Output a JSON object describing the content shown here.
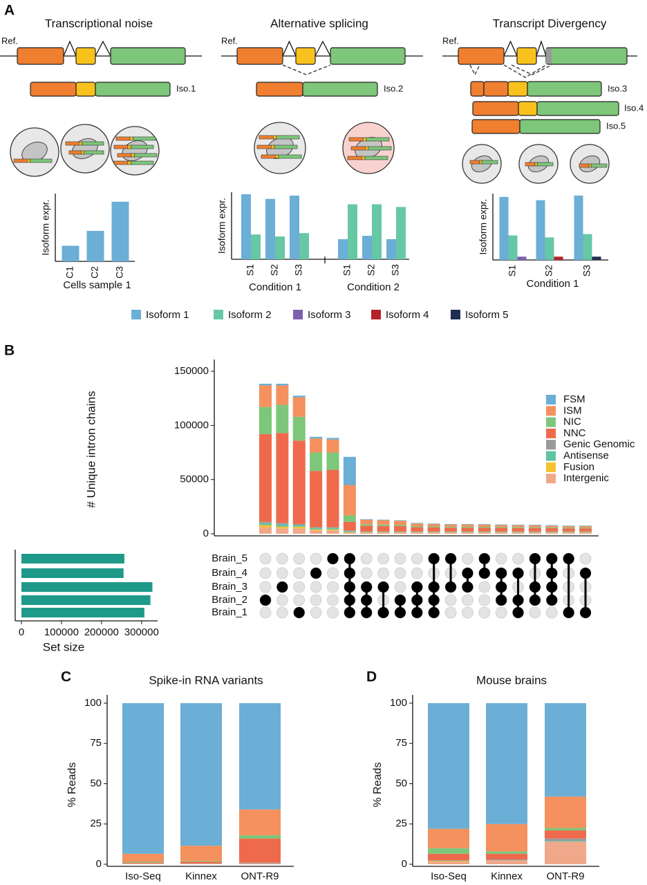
{
  "panel_a": {
    "label": "A",
    "ref_label": "Ref.",
    "columns": [
      {
        "title": "Transcriptional noise",
        "isoforms": [
          "Iso.1"
        ]
      },
      {
        "title": "Alternative splicing",
        "isoforms": [
          "Iso.2"
        ]
      },
      {
        "title": "Transcript Divergency",
        "isoforms": [
          "Iso.3",
          "Iso.4",
          "Iso.5"
        ]
      }
    ]
  },
  "chart_data": [
    {
      "type": "bar",
      "ylabel": "Isoform expr.",
      "xlabel": "Cells sample 1",
      "categories": [
        "C1",
        "C2",
        "C3"
      ],
      "ylim": [
        0,
        100
      ],
      "series": [
        {
          "name": "Isoform 1",
          "color": "#6baed6",
          "values": [
            23,
            45,
            88
          ]
        }
      ]
    },
    {
      "type": "bar",
      "ylabel": "Isoform expr.",
      "group_labels": [
        "Condition 1",
        "Condition 2"
      ],
      "categories": [
        "S1",
        "S2",
        "S3",
        "S1",
        "S2",
        "S3"
      ],
      "ylim": [
        0,
        100
      ],
      "series": [
        {
          "name": "Isoform 1",
          "color": "#6baed6",
          "values": [
            97,
            90,
            95,
            30,
            35,
            30
          ]
        },
        {
          "name": "Isoform 2",
          "color": "#66c8a4",
          "values": [
            37,
            34,
            39,
            82,
            82,
            78
          ]
        }
      ]
    },
    {
      "type": "bar",
      "ylabel": "Isoform expr.",
      "xlabel": "Condition 1",
      "categories": [
        "S1",
        "S2",
        "S3"
      ],
      "ylim": [
        0,
        100
      ],
      "legend": "bottom",
      "series": [
        {
          "name": "Isoform 1",
          "color": "#6baed6",
          "values": [
            95,
            90,
            97
          ]
        },
        {
          "name": "Isoform 2",
          "color": "#66c8a4",
          "values": [
            37,
            34,
            39
          ]
        },
        {
          "name": "Isoform 3",
          "color": "#7f5fb0",
          "values": [
            5,
            null,
            null
          ]
        },
        {
          "name": "Isoform 4",
          "color": "#b5202a",
          "values": [
            null,
            5,
            null
          ]
        },
        {
          "name": "Isoform 5",
          "color": "#1f2d50",
          "values": [
            null,
            null,
            5
          ]
        }
      ]
    },
    {
      "type": "upset",
      "label": "B",
      "ylabel": "# Unique intron chains",
      "ylim": [
        0,
        150000
      ],
      "yticks": [
        0,
        50000,
        100000,
        150000
      ],
      "legend": "top-right",
      "series": [
        {
          "name": "FSM",
          "color": "#6baed6",
          "values": [
            1500,
            1500,
            1500,
            1500,
            1500,
            26000,
            500,
            500,
            500,
            500,
            500,
            500,
            500,
            500,
            500,
            500,
            500,
            500,
            500,
            500
          ]
        },
        {
          "name": "ISM",
          "color": "#f4915e",
          "values": [
            20000,
            18000,
            18000,
            13000,
            12000,
            28000,
            4200,
            4000,
            3800,
            2500,
            2300,
            2000,
            2000,
            1900,
            1800,
            1700,
            1700,
            1500,
            1300,
            1300
          ]
        },
        {
          "name": "NIC",
          "color": "#7dc67a",
          "values": [
            25000,
            26000,
            22000,
            17000,
            16000,
            6000,
            1400,
            1300,
            1200,
            1000,
            900,
            900,
            900,
            900,
            900,
            900,
            800,
            800,
            700,
            700
          ]
        },
        {
          "name": "NNC",
          "color": "#ef6a4c",
          "values": [
            81000,
            83000,
            77000,
            52000,
            53000,
            8000,
            5400,
            5200,
            5000,
            4000,
            3800,
            3600,
            3600,
            3500,
            3400,
            3300,
            3300,
            3200,
            3000,
            3000
          ]
        },
        {
          "name": "Genic Genomic",
          "color": "#999999",
          "values": [
            1000,
            1500,
            1000,
            500,
            500,
            500,
            200,
            200,
            200,
            200,
            200,
            200,
            200,
            200,
            200,
            200,
            200,
            200,
            200,
            200
          ]
        },
        {
          "name": "Antisense",
          "color": "#5fc4a2",
          "values": [
            2000,
            2000,
            1500,
            1500,
            1500,
            1000,
            500,
            500,
            500,
            500,
            500,
            500,
            500,
            500,
            500,
            500,
            500,
            500,
            500,
            500
          ]
        },
        {
          "name": "Fusion",
          "color": "#f5c12e",
          "values": [
            2000,
            1500,
            1500,
            1000,
            1000,
            500,
            300,
            300,
            300,
            300,
            300,
            300,
            300,
            300,
            300,
            300,
            300,
            300,
            300,
            300
          ]
        },
        {
          "name": "Intergenic",
          "color": "#f0a88a",
          "values": [
            6000,
            5000,
            5000,
            3000,
            3000,
            1000,
            1000,
            1000,
            1000,
            1000,
            1000,
            1000,
            1000,
            1000,
            1000,
            1000,
            1000,
            1000,
            1000,
            1000
          ]
        }
      ],
      "sets": [
        "Brain_5",
        "Brain_4",
        "Brain_3",
        "Brain_2",
        "Brain_1"
      ],
      "intersections": [
        [
          3
        ],
        [
          2
        ],
        [
          4
        ],
        [
          1
        ],
        [
          0
        ],
        [
          0,
          1,
          2,
          3,
          4
        ],
        [
          2,
          3,
          4
        ],
        [
          2,
          4
        ],
        [
          3,
          4
        ],
        [
          2,
          3,
          4
        ],
        [
          0,
          2,
          3,
          4
        ],
        [
          0,
          2
        ],
        [
          1,
          2
        ],
        [
          0,
          1
        ],
        [
          1,
          2,
          3
        ],
        [
          1,
          3,
          4
        ],
        [
          0,
          2,
          3
        ],
        [
          0,
          1,
          2,
          3
        ],
        [
          0,
          4
        ],
        [
          1,
          4
        ]
      ],
      "set_sizes": {
        "xlabel": "Set size",
        "color": "#1f9a8a",
        "values": [
          257000,
          255000,
          327000,
          322000,
          307000
        ],
        "xlim": [
          0,
          340000
        ],
        "xticks": [
          0,
          100000,
          200000,
          300000
        ]
      }
    },
    {
      "type": "stacked_bar",
      "label": "C",
      "title": "Spike-in RNA variants",
      "ylabel": "% Reads",
      "categories": [
        "Iso-Seq",
        "Kinnex",
        "ONT-R9"
      ],
      "ylim": [
        0,
        100
      ],
      "yticks": [
        0,
        25,
        50,
        75,
        100
      ],
      "series": [
        {
          "color": "#6baed6",
          "values": [
            93.5,
            88.5,
            66
          ]
        },
        {
          "color": "#f4915e",
          "values": [
            5,
            9.5,
            16
          ]
        },
        {
          "color": "#7dc67a",
          "values": [
            0.5,
            0.5,
            2
          ]
        },
        {
          "color": "#ef6a4c",
          "values": [
            0.5,
            1,
            15
          ]
        },
        {
          "color": "#999999",
          "values": [
            0.2,
            0.2,
            0.5
          ]
        },
        {
          "color": "#5fc4a2",
          "values": [
            0,
            0,
            0
          ]
        },
        {
          "color": "#f5c12e",
          "values": [
            0,
            0,
            0
          ]
        },
        {
          "color": "#f0a88a",
          "values": [
            0.3,
            0.3,
            0.5
          ]
        }
      ]
    },
    {
      "type": "stacked_bar",
      "label": "D",
      "title": "Mouse brains",
      "ylabel": "% Reads",
      "categories": [
        "Iso-Seq",
        "Kinnex",
        "ONT-R9"
      ],
      "ylim": [
        0,
        100
      ],
      "yticks": [
        0,
        25,
        50,
        75,
        100
      ],
      "series": [
        {
          "color": "#6baed6",
          "values": [
            78,
            75,
            58
          ]
        },
        {
          "color": "#f4915e",
          "values": [
            12,
            17,
            19.5
          ]
        },
        {
          "color": "#7dc67a",
          "values": [
            3.5,
            1.5,
            1.5
          ]
        },
        {
          "color": "#ef6a4c",
          "values": [
            4,
            3.5,
            5
          ]
        },
        {
          "color": "#999999",
          "values": [
            0.5,
            0.5,
            1.5
          ]
        },
        {
          "color": "#5fc4a2",
          "values": [
            0,
            0,
            0.5
          ]
        },
        {
          "color": "#f5c12e",
          "values": [
            0.5,
            0,
            0
          ]
        },
        {
          "color": "#f0a88a",
          "values": [
            1.5,
            2.5,
            14
          ]
        }
      ]
    }
  ]
}
